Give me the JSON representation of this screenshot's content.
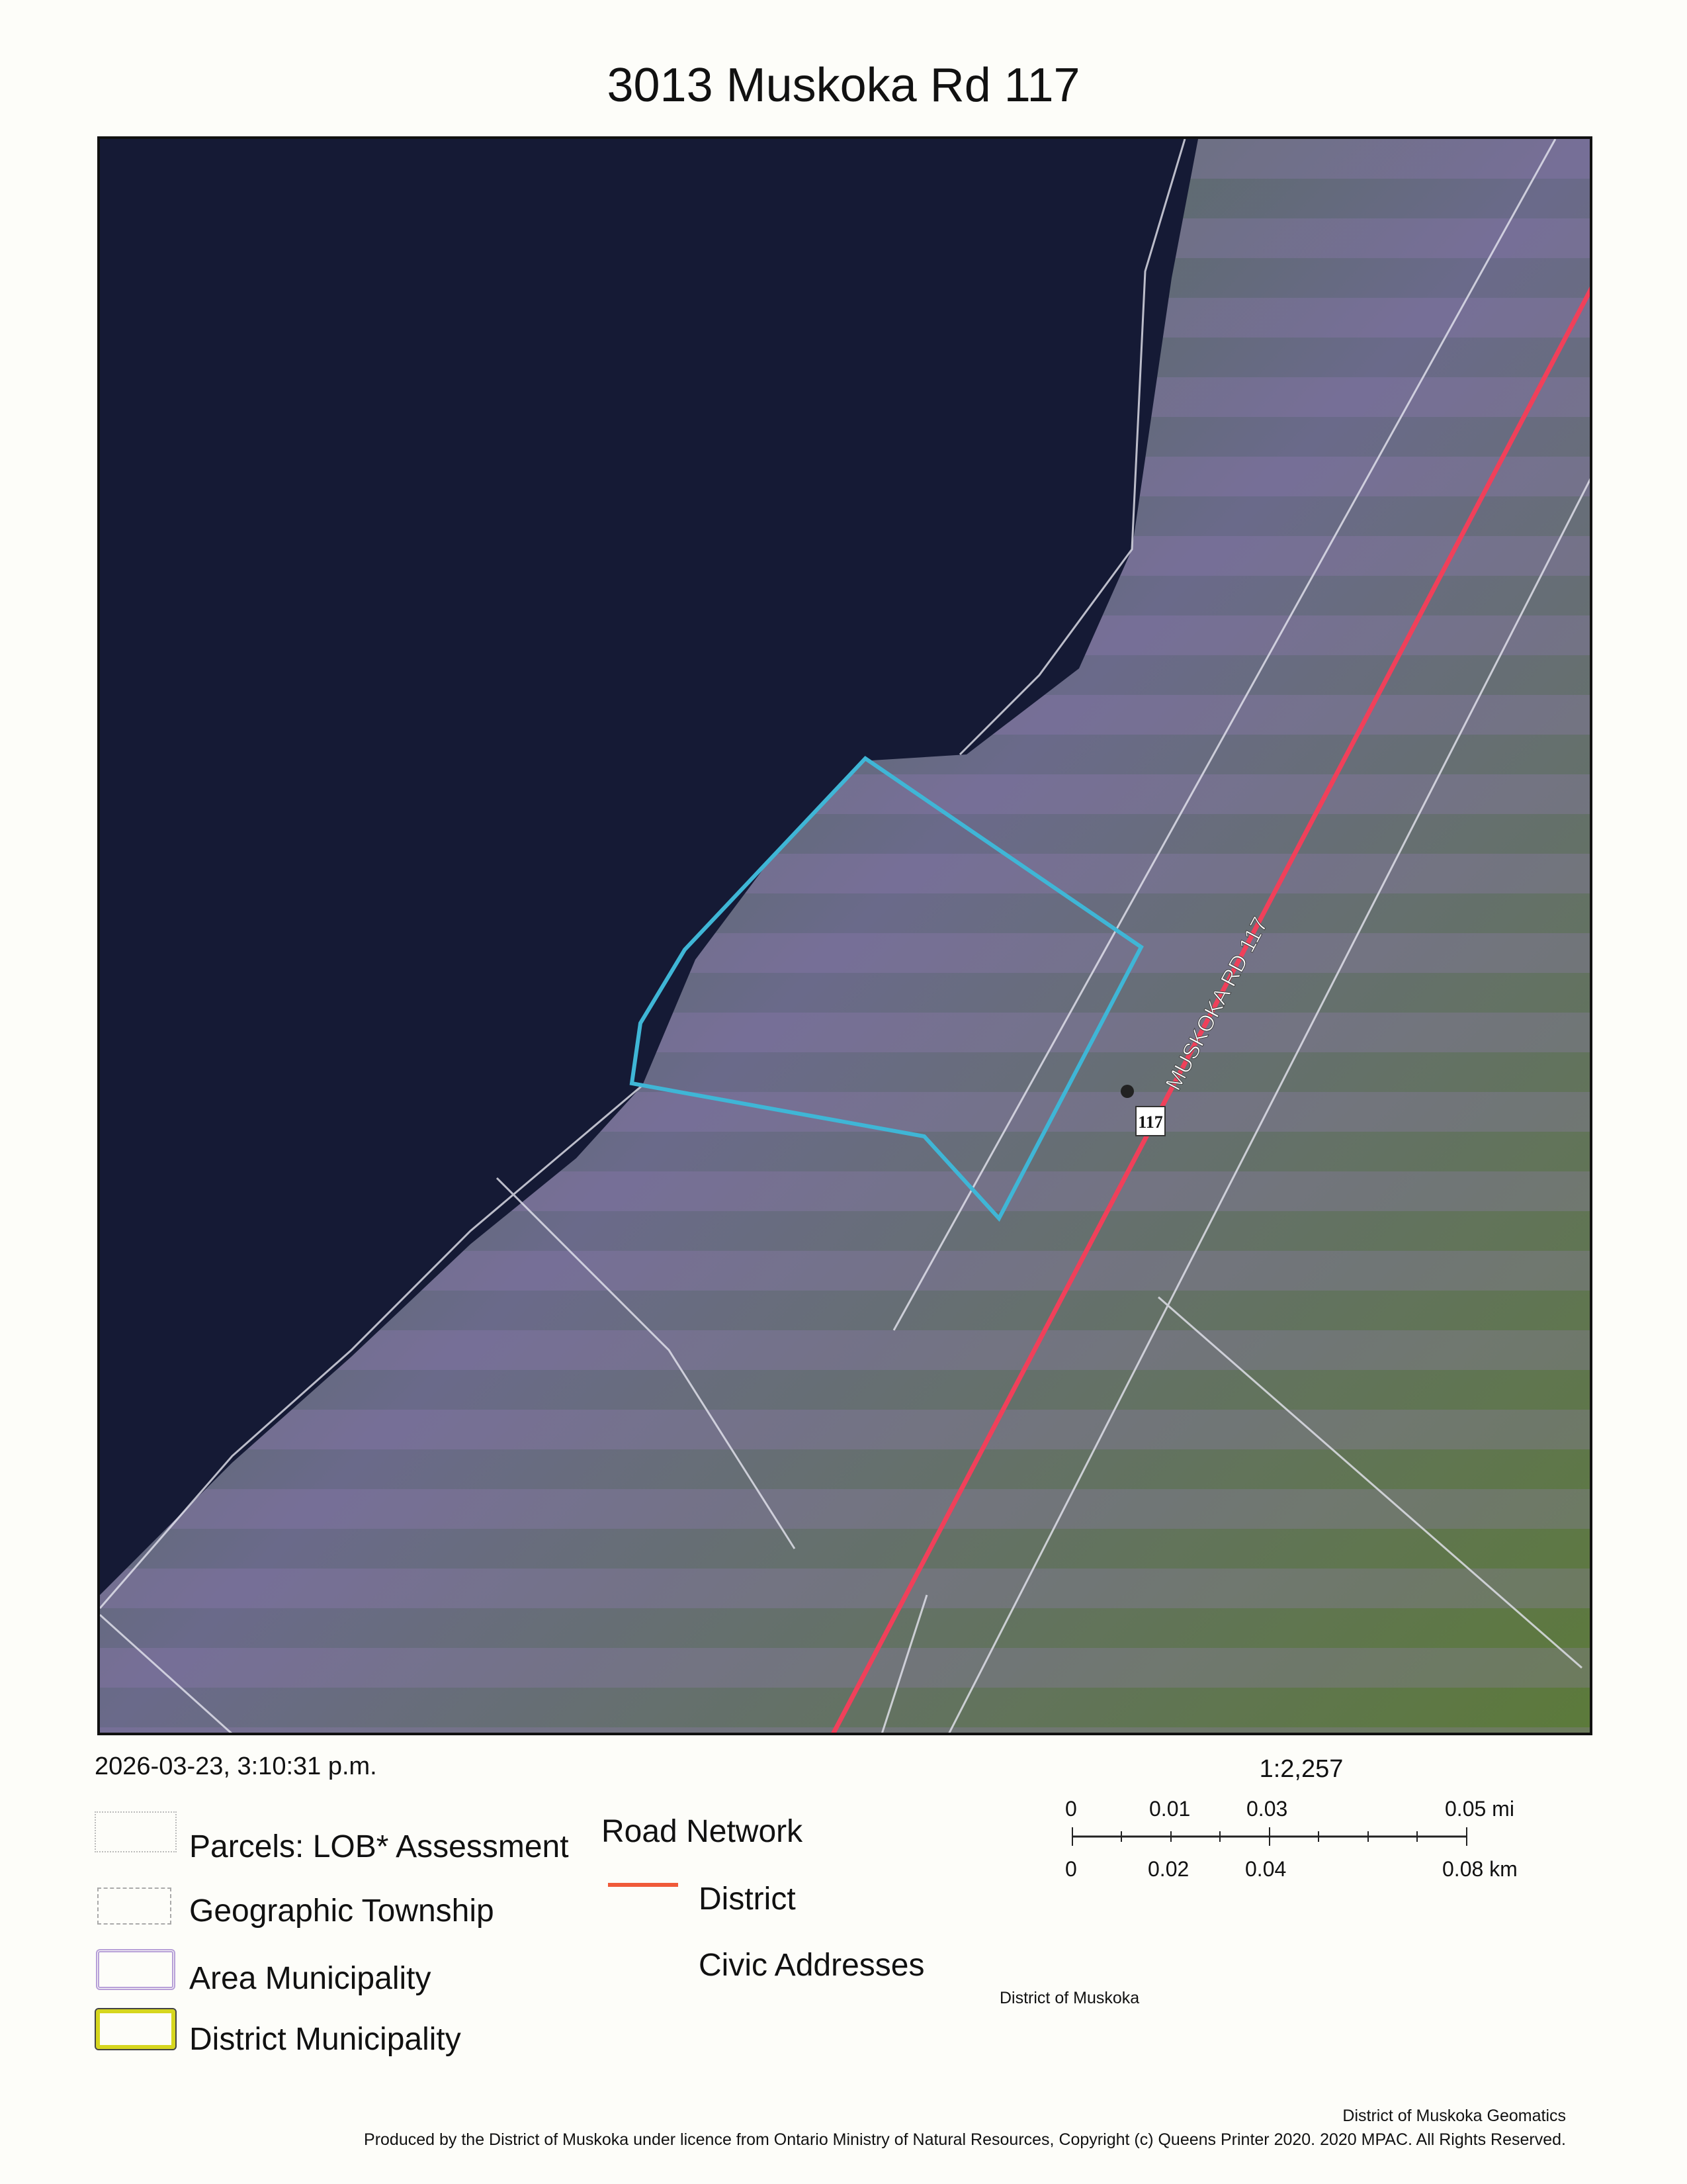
{
  "title": "3013 Muskoka Rd 117",
  "map": {
    "road_label": "MUSKOKA RD 117",
    "route_shield": "117",
    "colors": {
      "water": "#141a33",
      "land": "#4d7a2e",
      "parcel_highlight": "#3fb6d6",
      "road_district": "#f0405a",
      "parcel_lines": "#e6e6f0"
    }
  },
  "timestamp": "2026-03-23, 3:10:31 p.m.",
  "legend": {
    "left": [
      {
        "label": "Parcels: LOB* Assessment",
        "icon": "parcel-outline-icon"
      },
      {
        "label": "Geographic Township",
        "icon": "township-dashed-icon"
      },
      {
        "label": "Area Municipality",
        "icon": "area-municipality-icon"
      },
      {
        "label": "District Municipality",
        "icon": "district-municipality-icon"
      }
    ],
    "road_network_title": "Road Network",
    "road_district_label": "District",
    "civic_addresses_label": "Civic Addresses"
  },
  "scale": {
    "ratio": "1:2,257",
    "mi_labels": [
      "0",
      "0.01",
      "0.03",
      "0.05 mi"
    ],
    "km_labels": [
      "0",
      "0.02",
      "0.04",
      "0.08 km"
    ]
  },
  "footer": {
    "district": "District of Muskoka",
    "geomatics": "District of Muskoka Geomatics",
    "credit": "Produced by the District of Muskoka under licence from Ontario Ministry of Natural Resources, Copyright (c) Queens Printer 2020.  2020 MPAC.  All Rights Reserved."
  }
}
